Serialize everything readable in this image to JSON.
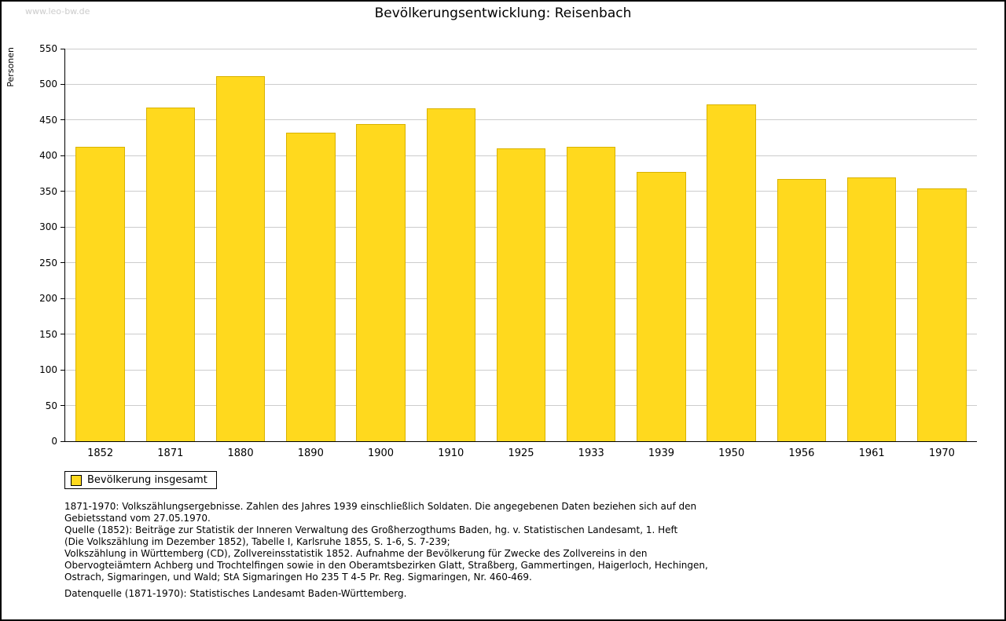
{
  "watermark": "www.leo-bw.de",
  "title": "Bevölkerungsentwicklung: Reisenbach",
  "chart_data": {
    "type": "bar",
    "title": "Bevölkerungsentwicklung: Reisenbach",
    "categories": [
      "1852",
      "1871",
      "1880",
      "1890",
      "1900",
      "1910",
      "1925",
      "1933",
      "1939",
      "1950",
      "1956",
      "1961",
      "1970"
    ],
    "values": [
      412,
      468,
      511,
      432,
      444,
      466,
      410,
      413,
      377,
      472,
      367,
      370,
      354
    ],
    "xlabel": "",
    "ylabel": "Personen",
    "ylim": [
      0,
      550
    ],
    "ytick_step": 50,
    "grid": true,
    "bar_color": "#FFD91E",
    "bar_border_color": "#D9B200",
    "grid_color": "#CCCCCC",
    "legend": {
      "position": "bottom-left",
      "entries": [
        "Bevölkerung insgesamt"
      ]
    }
  },
  "footnotes": [
    "1871-1970: Volkszählungsergebnisse. Zahlen des Jahres 1939 einschließlich Soldaten. Die angegebenen Daten beziehen sich auf den",
    "Gebietsstand vom 27.05.1970.",
    "Quelle (1852): Beiträge zur Statistik der Inneren Verwaltung des Großherzogthums Baden, hg. v. Statistischen Landesamt, 1. Heft",
    "(Die Volkszählung im Dezember 1852), Tabelle I, Karlsruhe 1855, S. 1-6, S. 7-239;",
    "Volkszählung in Württemberg (CD), Zollvereinsstatistik 1852. Aufnahme der Bevölkerung für Zwecke des Zollvereins in den",
    "Obervogteiämtern Achberg und Trochtelfingen sowie in den Oberamtsbezirken Glatt, Straßberg, Gammertingen, Haigerloch, Hechingen,",
    "Ostrach, Sigmaringen, und Wald; StA Sigmaringen Ho 235 T 4-5 Pr. Reg. Sigmaringen, Nr. 460-469.",
    "",
    "Datenquelle (1871-1970): Statistisches Landesamt Baden-Württemberg."
  ]
}
